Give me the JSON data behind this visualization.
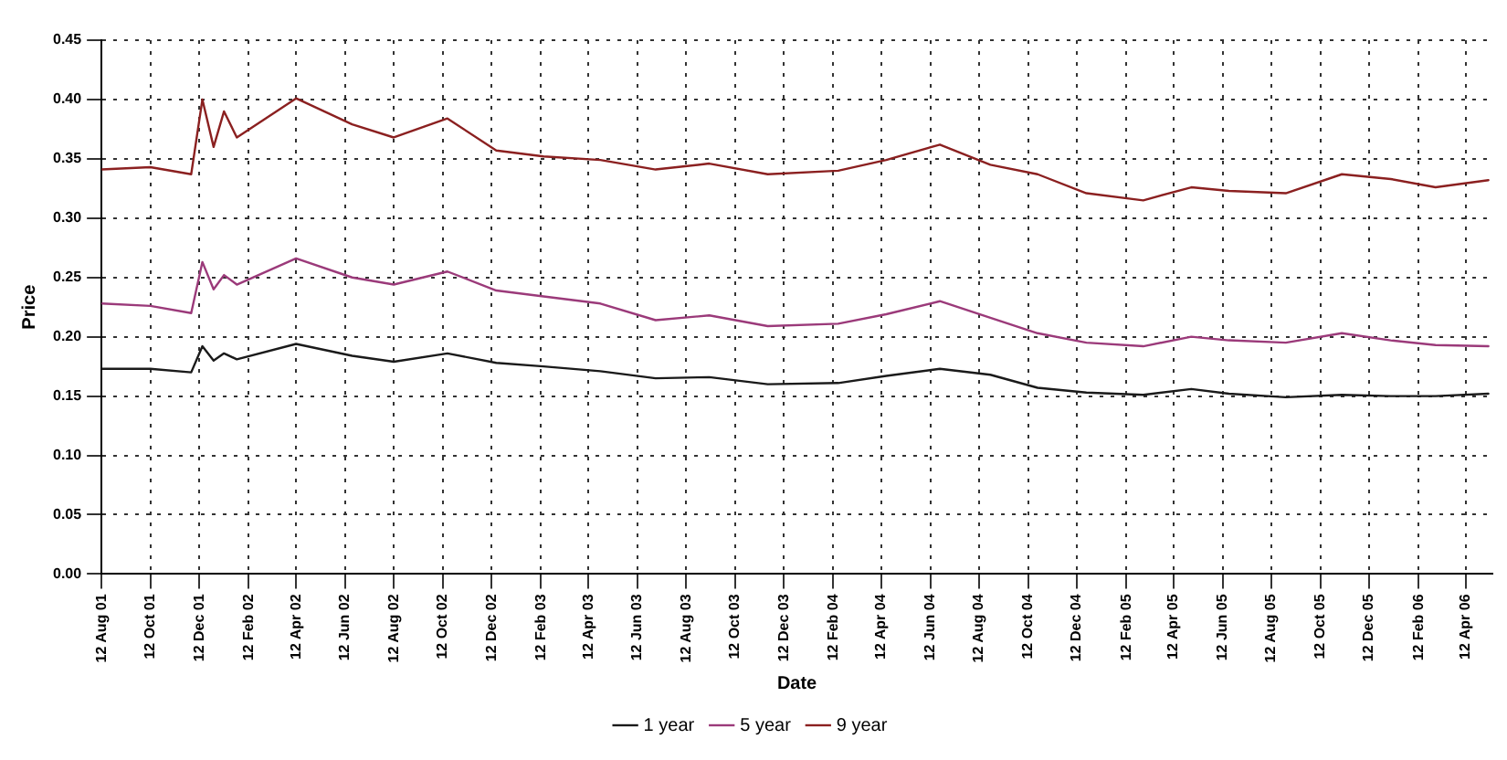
{
  "chart_data": {
    "type": "line",
    "xlabel": "Date",
    "ylabel": "Price",
    "x": [
      "2001-08-12",
      "2001-10-12",
      "2001-12-02",
      "2001-12-16",
      "2001-12-30",
      "2002-01-12",
      "2002-01-28",
      "2002-04-12",
      "2002-06-21",
      "2002-08-12",
      "2002-10-18",
      "2002-12-18",
      "2003-02-15",
      "2003-04-27",
      "2003-07-05",
      "2003-09-10",
      "2003-11-22",
      "2004-02-18",
      "2004-04-18",
      "2004-06-24",
      "2004-08-26",
      "2004-10-24",
      "2004-12-24",
      "2005-03-05",
      "2005-05-04",
      "2005-06-20",
      "2005-08-30",
      "2005-11-08",
      "2006-01-08",
      "2006-03-05",
      "2006-05-10"
    ],
    "series": [
      {
        "name": "1 year",
        "color": "#1a1a1a",
        "values": [
          0.173,
          0.173,
          0.17,
          0.192,
          0.18,
          0.186,
          0.181,
          0.194,
          0.184,
          0.179,
          0.186,
          0.178,
          0.175,
          0.171,
          0.165,
          0.166,
          0.16,
          0.161,
          0.167,
          0.173,
          0.168,
          0.157,
          0.153,
          0.151,
          0.156,
          0.152,
          0.149,
          0.151,
          0.15,
          0.15,
          0.152
        ]
      },
      {
        "name": "5 year",
        "color": "#9b3a7a",
        "values": [
          0.228,
          0.226,
          0.22,
          0.263,
          0.24,
          0.252,
          0.244,
          0.266,
          0.25,
          0.244,
          0.255,
          0.239,
          0.234,
          0.228,
          0.214,
          0.218,
          0.209,
          0.211,
          0.219,
          0.23,
          0.216,
          0.203,
          0.195,
          0.192,
          0.2,
          0.197,
          0.195,
          0.203,
          0.197,
          0.193,
          0.192
        ]
      },
      {
        "name": "9 year",
        "color": "#8b2020",
        "values": [
          0.341,
          0.343,
          0.337,
          0.4,
          0.36,
          0.39,
          0.368,
          0.401,
          0.379,
          0.368,
          0.384,
          0.357,
          0.352,
          0.349,
          0.341,
          0.346,
          0.337,
          0.34,
          0.349,
          0.362,
          0.345,
          0.337,
          0.321,
          0.315,
          0.326,
          0.323,
          0.321,
          0.337,
          0.333,
          0.326,
          0.332
        ]
      }
    ],
    "xlim": [
      "2001-08-12",
      "2006-05-15"
    ],
    "xticks": [
      {
        "value": "2001-08-12",
        "label": "12 Aug 01"
      },
      {
        "value": "2001-10-12",
        "label": "12 Oct 01"
      },
      {
        "value": "2001-12-12",
        "label": "12 Dec 01"
      },
      {
        "value": "2002-02-12",
        "label": "12 Feb 02"
      },
      {
        "value": "2002-04-12",
        "label": "12 Apr 02"
      },
      {
        "value": "2002-06-12",
        "label": "12 Jun 02"
      },
      {
        "value": "2002-08-12",
        "label": "12 Aug 02"
      },
      {
        "value": "2002-10-12",
        "label": "12 Oct 02"
      },
      {
        "value": "2002-12-12",
        "label": "12 Dec 02"
      },
      {
        "value": "2003-02-12",
        "label": "12 Feb 03"
      },
      {
        "value": "2003-04-12",
        "label": "12 Apr 03"
      },
      {
        "value": "2003-06-12",
        "label": "12 Jun 03"
      },
      {
        "value": "2003-08-12",
        "label": "12 Aug 03"
      },
      {
        "value": "2003-10-12",
        "label": "12 Oct 03"
      },
      {
        "value": "2003-12-12",
        "label": "12 Dec 03"
      },
      {
        "value": "2004-02-12",
        "label": "12 Feb 04"
      },
      {
        "value": "2004-04-12",
        "label": "12 Apr 04"
      },
      {
        "value": "2004-06-12",
        "label": "12 Jun 04"
      },
      {
        "value": "2004-08-12",
        "label": "12 Aug 04"
      },
      {
        "value": "2004-10-12",
        "label": "12 Oct 04"
      },
      {
        "value": "2004-12-12",
        "label": "12 Dec 04"
      },
      {
        "value": "2005-02-12",
        "label": "12 Feb 05"
      },
      {
        "value": "2005-04-12",
        "label": "12 Apr 05"
      },
      {
        "value": "2005-06-12",
        "label": "12 Jun 05"
      },
      {
        "value": "2005-08-12",
        "label": "12 Aug 05"
      },
      {
        "value": "2005-10-12",
        "label": "12 Oct 05"
      },
      {
        "value": "2005-12-12",
        "label": "12 Dec 05"
      },
      {
        "value": "2006-02-12",
        "label": "12 Feb 06"
      },
      {
        "value": "2006-04-12",
        "label": "12 Apr 06"
      }
    ],
    "ylim": [
      0,
      0.45
    ],
    "yticks": [
      {
        "value": 0,
        "label": "0.00"
      },
      0.05,
      {
        "value": 0.1,
        "label": "0.10"
      },
      0.15,
      {
        "value": 0.2,
        "label": "0.20"
      },
      0.25,
      {
        "value": 0.3,
        "label": "0.30"
      },
      0.35,
      {
        "value": 0.4,
        "label": "0.40"
      },
      0.45
    ],
    "grid": true,
    "legend": "bottom",
    "marker": "none",
    "line_style": "solid"
  }
}
